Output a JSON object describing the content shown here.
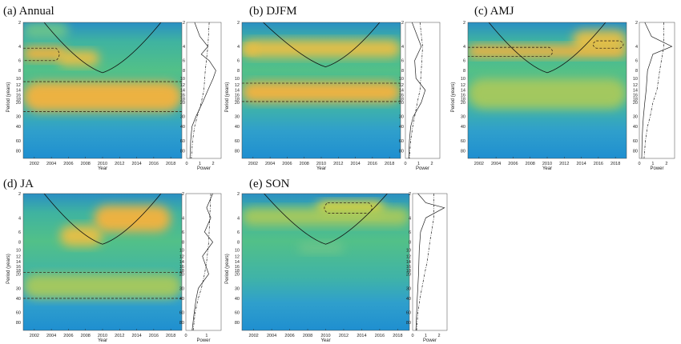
{
  "chart_data": [
    {
      "type": "heatmap",
      "title": "(a) Annual",
      "xlabel": "Year",
      "ylabel": "Period (years)",
      "x_ticks": [
        "2002",
        "2004",
        "2006",
        "2008",
        "2010",
        "2012",
        "2014",
        "2016",
        "2018"
      ],
      "y_ticks": [
        "2",
        "4",
        "6",
        "8",
        "10",
        "12",
        "14",
        "16",
        "18",
        "20",
        "30",
        "40",
        "60",
        "80"
      ],
      "xlim": [
        2000.7,
        2019.3
      ],
      "ylim": [
        2,
        100
      ],
      "y_scale": "log",
      "global_power": {
        "xlabel": "Power",
        "x_ticks": [
          "0",
          "1",
          "2"
        ],
        "xlim": [
          0,
          2.6
        ]
      },
      "blobs": [
        {
          "x": [
            2000.7,
            2005.8
          ],
          "y": [
            4,
            6
          ],
          "intensity": 0.9
        },
        {
          "x": [
            2004.8,
            2009.6
          ],
          "y": [
            4.5,
            7
          ],
          "intensity": 0.55
        },
        {
          "x": [
            2000.7,
            2019.3
          ],
          "y": [
            11,
            26
          ],
          "intensity": 0.95
        },
        {
          "x": [
            2000.7,
            2006
          ],
          "y": [
            2,
            3.2
          ],
          "intensity": 0.15
        }
      ],
      "significant_regions": [
        {
          "x": [
            2000.7,
            2005.3
          ],
          "y": [
            4.2,
            6
          ]
        },
        {
          "x": [
            2000.7,
            2019.3
          ],
          "y": [
            11,
            26
          ]
        }
      ],
      "cone_of_influence_min": {
        "year": 2010,
        "period": 8.5
      },
      "gws_solid": [
        [
          0.6,
          2
        ],
        [
          1.0,
          3
        ],
        [
          1.6,
          4
        ],
        [
          1.1,
          5
        ],
        [
          1.7,
          6
        ],
        [
          2.2,
          8
        ],
        [
          2.0,
          10
        ],
        [
          1.6,
          14
        ],
        [
          1.2,
          20
        ],
        [
          0.7,
          30
        ],
        [
          0.4,
          40
        ],
        [
          0.3,
          60
        ],
        [
          0.25,
          100
        ]
      ],
      "gws_dashdot": [
        [
          1.7,
          2
        ],
        [
          1.6,
          4
        ],
        [
          1.4,
          8
        ],
        [
          1.3,
          14
        ],
        [
          1.1,
          20
        ],
        [
          0.8,
          30
        ],
        [
          0.6,
          40
        ],
        [
          0.45,
          60
        ],
        [
          0.35,
          100
        ]
      ]
    },
    {
      "type": "heatmap",
      "title": "(b) DJFM",
      "xlabel": "Year",
      "ylabel": "Period (years)",
      "x_ticks": [
        "2002",
        "2004",
        "2006",
        "2008",
        "2010",
        "2012",
        "2014",
        "2016",
        "2018"
      ],
      "y_ticks": [
        "2",
        "4",
        "6",
        "8",
        "10",
        "12",
        "14",
        "16",
        "18",
        "20",
        "30",
        "40",
        "60",
        "80"
      ],
      "xlim": [
        2000.7,
        2019.3
      ],
      "ylim": [
        2,
        100
      ],
      "y_scale": "log",
      "global_power": {
        "xlabel": "Power",
        "x_ticks": [
          "0",
          "1",
          "2"
        ],
        "xlim": [
          0,
          2.6
        ]
      },
      "blobs": [
        {
          "x": [
            2000.7,
            2019.3
          ],
          "y": [
            3.3,
            5.5
          ],
          "intensity": 0.6
        },
        {
          "x": [
            2000.7,
            2019.3
          ],
          "y": [
            11,
            20
          ],
          "intensity": 0.9
        },
        {
          "x": [
            2000.7,
            2002.5
          ],
          "y": [
            3.8,
            5
          ],
          "intensity": 0.5
        }
      ],
      "significant_regions": [
        {
          "x": [
            2000.7,
            2019.3
          ],
          "y": [
            11.5,
            19.5
          ]
        }
      ],
      "cone_of_influence_min": {
        "year": 2010.5,
        "period": 7.2
      },
      "gws_solid": [
        [
          0.5,
          2
        ],
        [
          1.2,
          4
        ],
        [
          0.7,
          6
        ],
        [
          0.8,
          10
        ],
        [
          1.5,
          14
        ],
        [
          1.2,
          20
        ],
        [
          0.6,
          30
        ],
        [
          0.4,
          40
        ],
        [
          0.3,
          60
        ],
        [
          0.25,
          100
        ]
      ],
      "gws_dashdot": [
        [
          1.1,
          2
        ],
        [
          1.3,
          4
        ],
        [
          1.2,
          8
        ],
        [
          1.1,
          14
        ],
        [
          0.9,
          20
        ],
        [
          0.7,
          30
        ],
        [
          0.55,
          40
        ],
        [
          0.4,
          60
        ],
        [
          0.3,
          100
        ]
      ]
    },
    {
      "type": "heatmap",
      "title": "(c) AMJ",
      "xlabel": "Year",
      "ylabel": "Period (years)",
      "x_ticks": [
        "2002",
        "2004",
        "2006",
        "2008",
        "2010",
        "2012",
        "2014",
        "2016",
        "2018"
      ],
      "y_ticks": [
        "2",
        "4",
        "6",
        "8",
        "10",
        "12",
        "14",
        "16",
        "18",
        "20",
        "30",
        "40",
        "60",
        "80"
      ],
      "xlim": [
        2000.7,
        2019.3
      ],
      "ylim": [
        2,
        100
      ],
      "y_scale": "log",
      "global_power": {
        "xlabel": "Power",
        "x_ticks": [
          "0",
          "1",
          "2"
        ],
        "xlim": [
          0,
          2.6
        ]
      },
      "blobs": [
        {
          "x": [
            2000.7,
            2019.3
          ],
          "y": [
            3.8,
            5.5
          ],
          "intensity": 0.9
        },
        {
          "x": [
            2013,
            2019.3
          ],
          "y": [
            2.5,
            4.5
          ],
          "intensity": 0.6
        },
        {
          "x": [
            2000.7,
            2019.3
          ],
          "y": [
            10,
            24
          ],
          "intensity": 0.35
        }
      ],
      "significant_regions": [
        {
          "x": [
            2000.7,
            2011
          ],
          "y": [
            4.1,
            5.3
          ]
        },
        {
          "x": [
            2015,
            2019.3
          ],
          "y": [
            3.4,
            4.2
          ]
        }
      ],
      "cone_of_influence_min": {
        "year": 2010,
        "period": 8.5
      },
      "gws_solid": [
        [
          0.4,
          2
        ],
        [
          0.9,
          3
        ],
        [
          2.4,
          4
        ],
        [
          1.0,
          5
        ],
        [
          0.6,
          8
        ],
        [
          0.5,
          14
        ],
        [
          0.4,
          20
        ],
        [
          0.3,
          30
        ],
        [
          0.25,
          40
        ],
        [
          0.2,
          60
        ],
        [
          0.18,
          100
        ]
      ],
      "gws_dashdot": [
        [
          1.8,
          2
        ],
        [
          1.8,
          4
        ],
        [
          1.5,
          8
        ],
        [
          1.3,
          14
        ],
        [
          1.0,
          20
        ],
        [
          0.8,
          30
        ],
        [
          0.6,
          40
        ],
        [
          0.45,
          60
        ],
        [
          0.35,
          100
        ]
      ]
    },
    {
      "type": "heatmap",
      "title": "(d) JA",
      "xlabel": "Year",
      "ylabel": "Period (years)",
      "x_ticks": [
        "2002",
        "2004",
        "2006",
        "2008",
        "2010",
        "2012",
        "2014",
        "2016",
        "2018"
      ],
      "y_ticks": [
        "2",
        "4",
        "6",
        "8",
        "10",
        "12",
        "14",
        "16",
        "18",
        "20",
        "30",
        "40",
        "60",
        "80"
      ],
      "xlim": [
        2000.7,
        2019.3
      ],
      "ylim": [
        2,
        100
      ],
      "y_scale": "log",
      "global_power": {
        "xlabel": "Power",
        "x_ticks": [
          "0",
          "1"
        ],
        "xlim": [
          0,
          1.7
        ]
      },
      "blobs": [
        {
          "x": [
            2009,
            2018
          ],
          "y": [
            2.8,
            6
          ],
          "intensity": 0.8
        },
        {
          "x": [
            2005,
            2010
          ],
          "y": [
            5,
            9
          ],
          "intensity": 0.55
        },
        {
          "x": [
            2000.7,
            2019.3
          ],
          "y": [
            20,
            40
          ],
          "intensity": 0.45
        }
      ],
      "significant_regions": [
        {
          "x": [
            2000.7,
            2019.3
          ],
          "y": [
            19,
            40
          ]
        }
      ],
      "cone_of_influence_min": {
        "year": 2010,
        "period": 8.5
      },
      "gws_solid": [
        [
          1.3,
          2
        ],
        [
          1.0,
          3
        ],
        [
          1.2,
          4
        ],
        [
          0.9,
          6
        ],
        [
          1.3,
          8
        ],
        [
          0.8,
          12
        ],
        [
          1.1,
          20
        ],
        [
          0.6,
          30
        ],
        [
          0.5,
          40
        ],
        [
          0.4,
          60
        ],
        [
          0.3,
          100
        ]
      ],
      "gws_dashdot": [
        [
          1.2,
          2
        ],
        [
          1.15,
          4
        ],
        [
          1.1,
          8
        ],
        [
          1.0,
          14
        ],
        [
          0.9,
          20
        ],
        [
          0.75,
          30
        ],
        [
          0.6,
          40
        ],
        [
          0.45,
          60
        ],
        [
          0.35,
          100
        ]
      ]
    },
    {
      "type": "heatmap",
      "title": "(e) SON",
      "xlabel": "Year",
      "ylabel": "Period (years)",
      "x_ticks": [
        "2002",
        "2004",
        "2006",
        "2008",
        "2010",
        "2012",
        "2014",
        "2016",
        "2018"
      ],
      "y_ticks": [
        "2",
        "4",
        "6",
        "8",
        "10",
        "12",
        "14",
        "16",
        "18",
        "20",
        "30",
        "40",
        "60",
        "80"
      ],
      "xlim": [
        2000.7,
        2019.3
      ],
      "ylim": [
        2,
        100
      ],
      "y_scale": "log",
      "global_power": {
        "xlabel": "Power",
        "x_ticks": [
          "0",
          "1",
          "2"
        ],
        "xlim": [
          0,
          2.6
        ]
      },
      "blobs": [
        {
          "x": [
            2009,
            2016.5
          ],
          "y": [
            2.5,
            3.8
          ],
          "intensity": 1.0
        },
        {
          "x": [
            2000.7,
            2019.3
          ],
          "y": [
            3,
            5
          ],
          "intensity": 0.4
        },
        {
          "x": [
            2007,
            2012
          ],
          "y": [
            8,
            11
          ],
          "intensity": 0.25
        }
      ],
      "significant_regions": [
        {
          "x": [
            2009.5,
            2015.5
          ],
          "y": [
            2.6,
            3.5
          ]
        }
      ],
      "cone_of_influence_min": {
        "year": 2010,
        "period": 8.5
      },
      "gws_solid": [
        [
          0.4,
          2
        ],
        [
          1.0,
          2.6
        ],
        [
          2.4,
          3
        ],
        [
          1.0,
          4
        ],
        [
          0.6,
          6
        ],
        [
          0.5,
          10
        ],
        [
          0.45,
          20
        ],
        [
          0.35,
          40
        ],
        [
          0.25,
          100
        ]
      ],
      "gws_dashdot": [
        [
          1.6,
          2
        ],
        [
          1.6,
          4
        ],
        [
          1.3,
          8
        ],
        [
          1.1,
          14
        ],
        [
          0.9,
          20
        ],
        [
          0.7,
          30
        ],
        [
          0.55,
          40
        ],
        [
          0.4,
          60
        ],
        [
          0.3,
          100
        ]
      ]
    }
  ]
}
